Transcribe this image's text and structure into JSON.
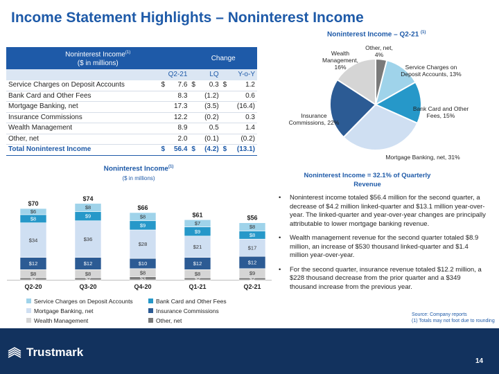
{
  "page_title": "Income Statement Highlights – Noninterest Income",
  "table": {
    "title_line1": "Noninterest Income",
    "title_line2": "($ in millions)",
    "title_sup": "(1)",
    "change_header": "Change",
    "columns": [
      "Q2-21",
      "LQ",
      "Y-o-Y"
    ],
    "rows": [
      {
        "label": "Service Charges on Deposit Accounts",
        "cur1": "$",
        "q221": "7.6",
        "cur2": "$",
        "lq": "0.3",
        "cur3": "$",
        "yoy": "1.2"
      },
      {
        "label": "Bank Card and Other Fees",
        "cur1": "",
        "q221": "8.3",
        "cur2": "",
        "lq": "(1.2)",
        "cur3": "",
        "yoy": "0.6"
      },
      {
        "label": "Mortgage Banking, net",
        "cur1": "",
        "q221": "17.3",
        "cur2": "",
        "lq": "(3.5)",
        "cur3": "",
        "yoy": "(16.4)"
      },
      {
        "label": "Insurance Commissions",
        "cur1": "",
        "q221": "12.2",
        "cur2": "",
        "lq": "(0.2)",
        "cur3": "",
        "yoy": "0.3"
      },
      {
        "label": "Wealth Management",
        "cur1": "",
        "q221": "8.9",
        "cur2": "",
        "lq": "0.5",
        "cur3": "",
        "yoy": "1.4"
      },
      {
        "label": "Other, net",
        "cur1": "",
        "q221": "2.0",
        "cur2": "",
        "lq": "(0.1)",
        "cur3": "",
        "yoy": "(0.2)"
      }
    ],
    "total": {
      "label": "Total Noninterest Income",
      "cur1": "$",
      "q221": "56.4",
      "cur2": "$",
      "lq": "(4.2)",
      "cur3": "$",
      "yoy": "(13.1)"
    }
  },
  "bar_chart_title": "Noninterest Income",
  "bar_chart_title_sup": "(1)",
  "bar_chart_subtitle": "($ in millions)",
  "pie_chart_title": "Noninterest Income – Q2-21",
  "pie_chart_title_sup": "(1)",
  "pie_caption": "Noninterest Income = 32.1% of Quarterly Revenue",
  "colors": {
    "service_charges": "#9fd3ea",
    "bank_card": "#2698c9",
    "mortgage": "#cfdff2",
    "insurance": "#2c5b94",
    "wealth": "#d5d5d5",
    "other": "#7a7a7a",
    "brand_blue": "#1e5aa8",
    "footer_navy": "#12325e"
  },
  "chart_data": [
    {
      "type": "bar",
      "stacked": true,
      "title": "Noninterest Income",
      "subtitle": "($ in millions)",
      "categories": [
        "Q2-20",
        "Q3-20",
        "Q4-20",
        "Q1-21",
        "Q2-21"
      ],
      "totals": [
        "$70",
        "$74",
        "$66",
        "$61",
        "$56"
      ],
      "series": [
        {
          "name": "Other, net",
          "color": "#7a7a7a",
          "values": [
            2,
            2,
            3,
            2,
            2
          ],
          "labels": [
            "$2",
            "$2",
            "$3",
            "$2",
            "$2"
          ]
        },
        {
          "name": "Wealth Management",
          "color": "#d5d5d5",
          "values": [
            8,
            8,
            8,
            8,
            9
          ],
          "labels": [
            "$8",
            "$8",
            "$8",
            "$8",
            "$9"
          ]
        },
        {
          "name": "Insurance Commissions",
          "color": "#2c5b94",
          "values": [
            12,
            12,
            10,
            12,
            12
          ],
          "labels": [
            "$12",
            "$12",
            "$10",
            "$12",
            "$12"
          ]
        },
        {
          "name": "Mortgage Banking, net",
          "color": "#cfdff2",
          "values": [
            34,
            36,
            28,
            21,
            17
          ],
          "labels": [
            "$34",
            "$36",
            "$28",
            "$21",
            "$17"
          ]
        },
        {
          "name": "Bank Card and Other Fees",
          "color": "#2698c9",
          "values": [
            8,
            9,
            9,
            9,
            8
          ],
          "labels": [
            "$8",
            "$9",
            "$9",
            "$9",
            "$8"
          ]
        },
        {
          "name": "Service Charges on Deposit Accounts",
          "color": "#9fd3ea",
          "values": [
            6,
            8,
            8,
            7,
            8
          ],
          "labels": [
            "$6",
            "$8",
            "$8",
            "$7",
            "$8"
          ]
        }
      ],
      "ylim": [
        0,
        80
      ],
      "legend": [
        {
          "name": "Service Charges on Deposit Accounts",
          "color": "#9fd3ea"
        },
        {
          "name": "Bank Card and Other Fees",
          "color": "#2698c9"
        },
        {
          "name": "Mortgage Banking, net",
          "color": "#cfdff2"
        },
        {
          "name": "Insurance Commissions",
          "color": "#2c5b94"
        },
        {
          "name": "Wealth Management",
          "color": "#d5d5d5"
        },
        {
          "name": "Other, net",
          "color": "#7a7a7a"
        }
      ],
      "legend_placement": "bottom"
    },
    {
      "type": "pie",
      "title": "Noninterest Income – Q2-21",
      "slices": [
        {
          "name": "Other, net",
          "value": 4,
          "label": "Other, net,\n4%",
          "color": "#7a7a7a"
        },
        {
          "name": "Service Charges on Deposit Accounts",
          "value": 13,
          "label": "Service Charges on\nDeposit Accounts, 13%",
          "color": "#9fd3ea"
        },
        {
          "name": "Bank Card and Other Fees",
          "value": 15,
          "label": "Bank Card and Other\nFees, 15%",
          "color": "#2698c9"
        },
        {
          "name": "Mortgage Banking, net",
          "value": 31,
          "label": "Mortgage Banking, net, 31%",
          "color": "#cfdff2"
        },
        {
          "name": "Insurance Commissions",
          "value": 22,
          "label": "Insurance\nCommissions, 22%",
          "color": "#2c5b94"
        },
        {
          "name": "Wealth Management",
          "value": 16,
          "label": "Wealth\nManagement,\n16%",
          "color": "#d5d5d5"
        }
      ]
    }
  ],
  "bullets": [
    "Noninterest income totaled $56.4 million for the second quarter, a decrease of $4.2 million linked-quarter and $13.1 million year-over-year.  The linked-quarter and year-over-year changes are principally attributable to lower mortgage banking revenue.",
    "Wealth management revenue for the second quarter totaled $8.9 million, an increase of $530 thousand linked-quarter and $1.4 million year-over-year.",
    "For the second quarter,  insurance revenue totaled $12.2 million, a $228 thousand decrease from the prior quarter and a $349 thousand increase from the previous year."
  ],
  "source_line1": "Source: Company reports",
  "source_line2": "(1) Totals may not foot due to rounding",
  "logo_text": "Trustmark",
  "logo_icon": "trustmark-logo-icon",
  "page_number": "14"
}
